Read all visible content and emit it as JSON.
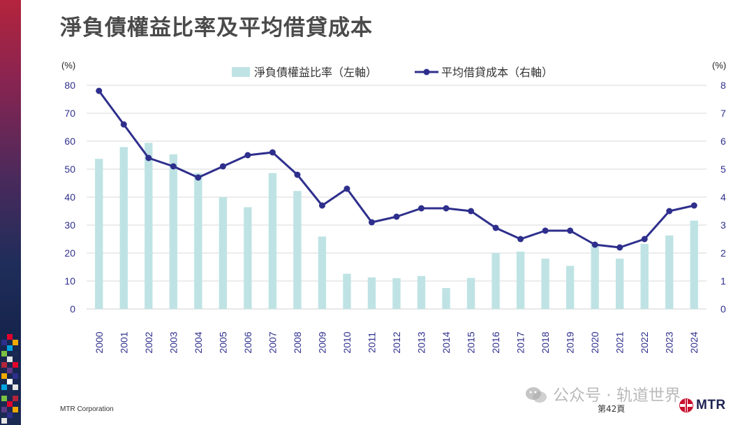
{
  "header": {
    "title": "淨負債權益比率及平均借貸成本"
  },
  "footer": {
    "company": "MTR Corporation",
    "page_label": "第42頁",
    "watermark": "公众号 · 轨道世界",
    "logo_text": "MTR",
    "logo_icon": "mtr-logo-icon"
  },
  "colors": {
    "bar": "#bfe3e4",
    "line": "#2e2f8c",
    "axis_text": "#2e2f8c",
    "grid": "#d9d9d9",
    "title": "#4a4a4a",
    "brand_red": "#c8102e"
  },
  "chart_data": {
    "type": "bar+line",
    "title": "",
    "left_axis": {
      "unit_label": "(%)",
      "ylim": [
        0,
        80
      ],
      "ticks": [
        "0",
        "10",
        "20",
        "30",
        "40",
        "50",
        "60",
        "70",
        "80"
      ]
    },
    "right_axis": {
      "unit_label": "(%)",
      "ylim": [
        0,
        8
      ],
      "ticks": [
        "0",
        "1",
        "2",
        "3",
        "4",
        "5",
        "6",
        "7",
        "8"
      ]
    },
    "categories": [
      "2000",
      "2001",
      "2002",
      "2003",
      "2004",
      "2005",
      "2006",
      "2007",
      "2008",
      "2009",
      "2010",
      "2011",
      "2012",
      "2013",
      "2014",
      "2015",
      "2016",
      "2017",
      "2018",
      "2019",
      "2020",
      "2021",
      "2022",
      "2023",
      "2024"
    ],
    "series": [
      {
        "name": "淨負債權益比率（左軸）",
        "type": "bar",
        "axis": "left",
        "values": [
          53.7,
          57.9,
          59.4,
          55.3,
          48.6,
          40.0,
          36.4,
          48.6,
          42.2,
          25.9,
          12.6,
          11.3,
          11.0,
          11.8,
          7.5,
          11.1,
          20.1,
          20.5,
          18.0,
          15.4,
          23.3,
          18.0,
          23.3,
          26.3,
          31.6
        ]
      },
      {
        "name": "平均借貸成本（右軸）",
        "type": "line",
        "axis": "right",
        "values": [
          7.8,
          6.6,
          5.4,
          5.1,
          4.7,
          5.1,
          5.5,
          5.6,
          4.8,
          3.7,
          4.3,
          3.1,
          3.3,
          3.6,
          3.6,
          3.5,
          2.9,
          2.5,
          2.8,
          2.8,
          2.3,
          2.2,
          2.5,
          3.5,
          3.7
        ]
      }
    ],
    "grid": true,
    "legend": "top-center"
  }
}
